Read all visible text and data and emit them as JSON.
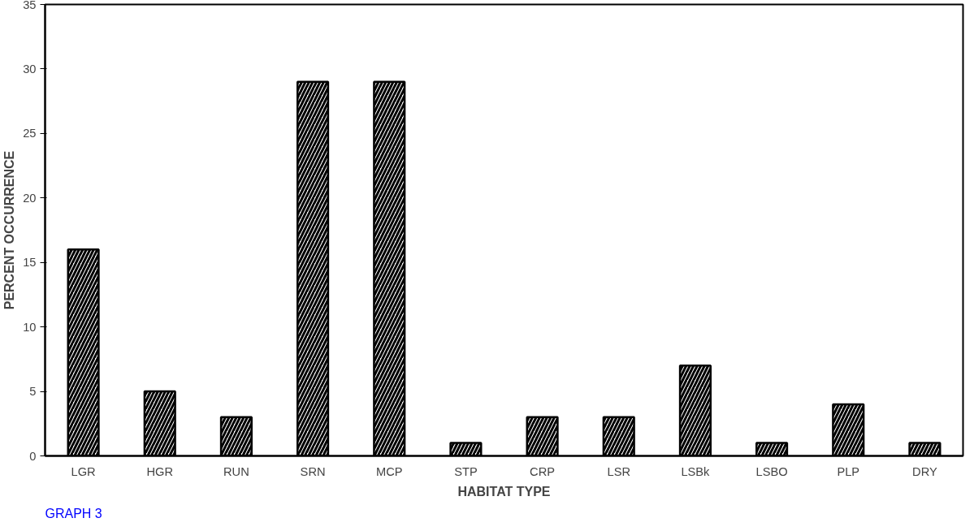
{
  "chart_data": {
    "type": "bar",
    "xlabel": "HABITAT TYPE",
    "ylabel": "PERCENT OCCURRENCE",
    "categories": [
      "LGR",
      "HGR",
      "RUN",
      "SRN",
      "MCP",
      "STP",
      "CRP",
      "LSR",
      "LSBk",
      "LSBO",
      "PLP",
      "DRY"
    ],
    "values": [
      16,
      5,
      3,
      29,
      29,
      1,
      3,
      3,
      7,
      1,
      4,
      1
    ],
    "color": "#000000",
    "ylim": [
      0,
      35
    ],
    "yticks": [
      0,
      5,
      10,
      15,
      20,
      25,
      30,
      35
    ],
    "grid": false,
    "annotations": [
      "GRAPH 3"
    ]
  }
}
